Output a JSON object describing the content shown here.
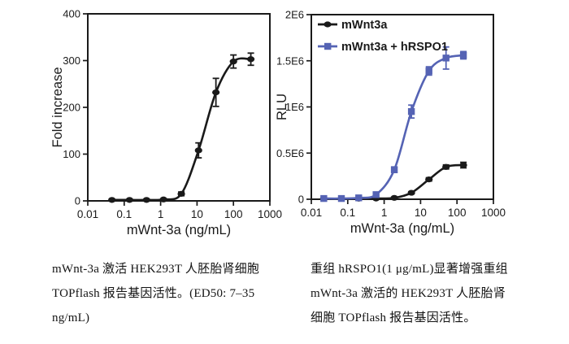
{
  "figure": {
    "background": "#ffffff",
    "ink_color": "#1a1a1a",
    "accent_blue": "#5563b4"
  },
  "chart_data": [
    {
      "type": "line",
      "title": "",
      "xlabel": "mWnt-3a (ng/mL)",
      "ylabel": "Fold increase",
      "xscale": "log",
      "xlim": [
        0.01,
        1000
      ],
      "ylim": [
        0,
        400
      ],
      "xticks": [
        0.01,
        0.1,
        1,
        10,
        100,
        1000
      ],
      "xtick_labels": [
        "0.01",
        "0.1",
        "1",
        "10",
        "100",
        "1000"
      ],
      "yticks": [
        0,
        100,
        200,
        300,
        400
      ],
      "ytick_labels": [
        "0",
        "100",
        "200",
        "300",
        "400"
      ],
      "grid": false,
      "legend": false,
      "series": [
        {
          "name": "mWnt-3a",
          "color": "#1a1a1a",
          "marker": "circle",
          "x": [
            0.046,
            0.14,
            0.41,
            1.2,
            3.7,
            11,
            33,
            100,
            300
          ],
          "y": [
            2,
            2,
            2,
            3,
            15,
            108,
            232,
            298,
            303
          ],
          "yerr": [
            0,
            0,
            0,
            0,
            4,
            16,
            30,
            14,
            13
          ]
        }
      ]
    },
    {
      "type": "line",
      "title": "",
      "xlabel": "mWnt-3a (ng/mL)",
      "ylabel": "RLU",
      "xscale": "log",
      "xlim": [
        0.01,
        1000
      ],
      "ylim": [
        0,
        2000000
      ],
      "xticks": [
        0.01,
        0.1,
        1,
        10,
        100,
        1000
      ],
      "xtick_labels": [
        "0.01",
        "0.1",
        "1",
        "10",
        "100",
        "1000"
      ],
      "yticks": [
        0,
        500000,
        1000000,
        1500000,
        2000000
      ],
      "ytick_labels": [
        "0",
        "0.5E6",
        "1E6",
        "1.5E6",
        "2E6"
      ],
      "grid": false,
      "legend": true,
      "legend_position": "top-left",
      "series": [
        {
          "name": "mWnt3a",
          "color": "#1a1a1a",
          "marker": "circle",
          "x": [
            0.022,
            0.067,
            0.2,
            0.6,
            1.9,
            5.6,
            17,
            50,
            150
          ],
          "y": [
            6000,
            6000,
            6000,
            8000,
            15000,
            70000,
            215000,
            350000,
            370000
          ],
          "yerr": [
            0,
            0,
            0,
            0,
            0,
            10000,
            18000,
            22000,
            30000
          ]
        },
        {
          "name": "mWnt3a + hRSPO1",
          "color": "#5563b4",
          "marker": "square",
          "x": [
            0.022,
            0.067,
            0.2,
            0.6,
            1.9,
            5.6,
            17,
            50,
            150
          ],
          "y": [
            8000,
            8000,
            15000,
            50000,
            320000,
            950000,
            1390000,
            1530000,
            1560000
          ],
          "yerr": [
            0,
            0,
            0,
            0,
            30000,
            70000,
            45000,
            120000,
            40000
          ]
        }
      ]
    }
  ],
  "captions": {
    "left": {
      "lines": [
        "mWnt-3a 激活 HEK293T 人胚胎肾细胞",
        "TOPflash 报告基因活性。(ED50: 7–35",
        "ng/mL)"
      ]
    },
    "right": {
      "lines": [
        "重组 hRSPO1(1 μg/mL)显著增强重组",
        "mWnt-3a 激活的 HEK293T 人胚胎肾",
        "细胞 TOPflash 报告基因活性。"
      ]
    }
  },
  "margin_fragments": [
    ")",
    ")",
    ")"
  ]
}
